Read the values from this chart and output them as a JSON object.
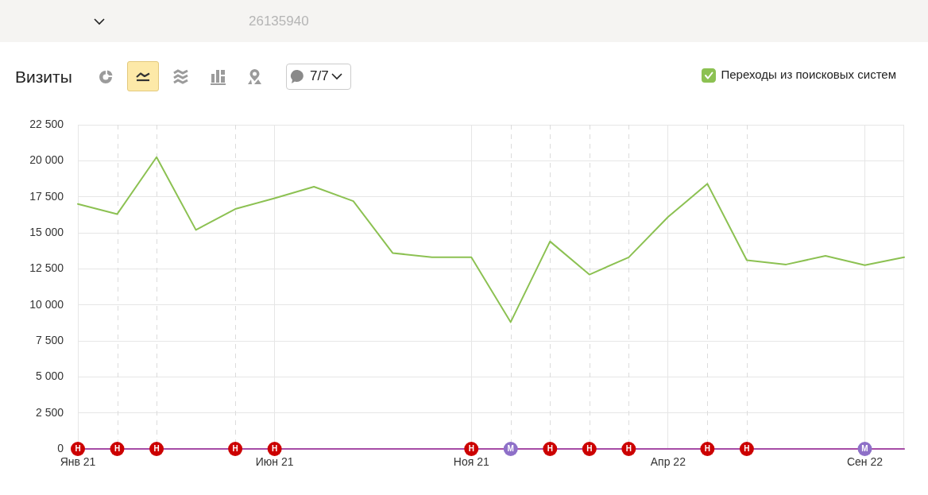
{
  "chart_data": {
    "type": "line",
    "title": "Визиты",
    "x": [
      "2021-01",
      "2021-02",
      "2021-03",
      "2021-04",
      "2021-05",
      "2021-06",
      "2021-07",
      "2021-08",
      "2021-09",
      "2021-10",
      "2021-11",
      "2021-12",
      "2022-01",
      "2022-02",
      "2022-03",
      "2022-04",
      "2022-05",
      "2022-06",
      "2022-07",
      "2022-08",
      "2022-09",
      "2022-10"
    ],
    "series": [
      {
        "name": "Переходы из поисковых систем",
        "color": "#8cc152",
        "values": [
          17000,
          16300,
          20250,
          15200,
          16650,
          17400,
          18200,
          17200,
          13600,
          13300,
          13300,
          8800,
          14400,
          12100,
          13300,
          16100,
          18400,
          13100,
          12800,
          13400,
          12750,
          13300
        ]
      },
      {
        "color": "#a64ca6",
        "values": [
          0,
          0,
          0,
          0,
          0,
          0,
          0,
          0,
          0,
          0,
          0,
          0,
          0,
          0,
          0,
          0,
          0,
          0,
          0,
          0,
          0,
          0
        ]
      },
      {
        "name": "Н",
        "type": "scatter",
        "color": "#cc0000",
        "x": [
          "2021-01",
          "2021-02",
          "2021-03",
          "2021-05",
          "2021-06",
          "2021-11",
          "2022-01",
          "2022-02",
          "2022-03",
          "2022-05",
          "2022-06"
        ],
        "values": [
          0,
          0,
          0,
          0,
          0,
          0,
          0,
          0,
          0,
          0,
          0
        ]
      },
      {
        "name": "М",
        "type": "scatter",
        "color": "#8e70c8",
        "x": [
          "2021-12",
          "2022-09"
        ],
        "values": [
          0,
          0
        ]
      }
    ],
    "xlim": [
      "2021-01",
      "2022-10"
    ],
    "xticks": [
      {
        "value": "2021-01",
        "label": "Янв 21"
      },
      {
        "value": "2021-06",
        "label": "Июн 21"
      },
      {
        "value": "2021-11",
        "label": "Ноя 21"
      },
      {
        "value": "2022-04",
        "label": "Апр 22"
      },
      {
        "value": "2022-09",
        "label": "Сен 22"
      }
    ],
    "ylim": [
      0,
      22500
    ],
    "yticks": [
      0,
      {
        "value": 2500,
        "label": "2 500"
      },
      {
        "value": 5000,
        "label": "5 000"
      },
      {
        "value": 7500,
        "label": "7 500"
      },
      {
        "value": 10000,
        "label": "10 000"
      },
      {
        "value": 12500,
        "label": "12 500"
      },
      {
        "value": 15000,
        "label": "15 000"
      },
      {
        "value": 17500,
        "label": "17 500"
      },
      {
        "value": 20000,
        "label": "20 000"
      },
      {
        "value": 22500,
        "label": "22 500"
      }
    ],
    "grid": true,
    "legend": "top right",
    "ref_lines": [
      {
        "axis": "x",
        "value": "2021-02",
        "color": "#dcdcdc",
        "line_style": "dashed"
      },
      {
        "axis": "x",
        "value": "2021-03",
        "color": "#dcdcdc",
        "line_style": "dashed"
      },
      {
        "axis": "x",
        "value": "2021-05",
        "color": "#dcdcdc",
        "line_style": "dashed"
      },
      {
        "axis": "x",
        "value": "2021-12",
        "color": "#dcdcdc",
        "line_style": "dashed"
      },
      {
        "axis": "x",
        "value": "2022-01",
        "color": "#dcdcdc",
        "line_style": "dashed"
      },
      {
        "axis": "x",
        "value": "2022-02",
        "color": "#dcdcdc",
        "line_style": "dashed"
      },
      {
        "axis": "x",
        "value": "2022-03",
        "color": "#dcdcdc",
        "line_style": "dashed"
      },
      {
        "axis": "x",
        "value": "2022-05",
        "color": "#dcdcdc",
        "line_style": "dashed"
      },
      {
        "axis": "x",
        "value": "2022-06",
        "color": "#dcdcdc",
        "line_style": "dashed"
      }
    ],
    "annotations": [
      "26135940",
      "7/7"
    ]
  }
}
